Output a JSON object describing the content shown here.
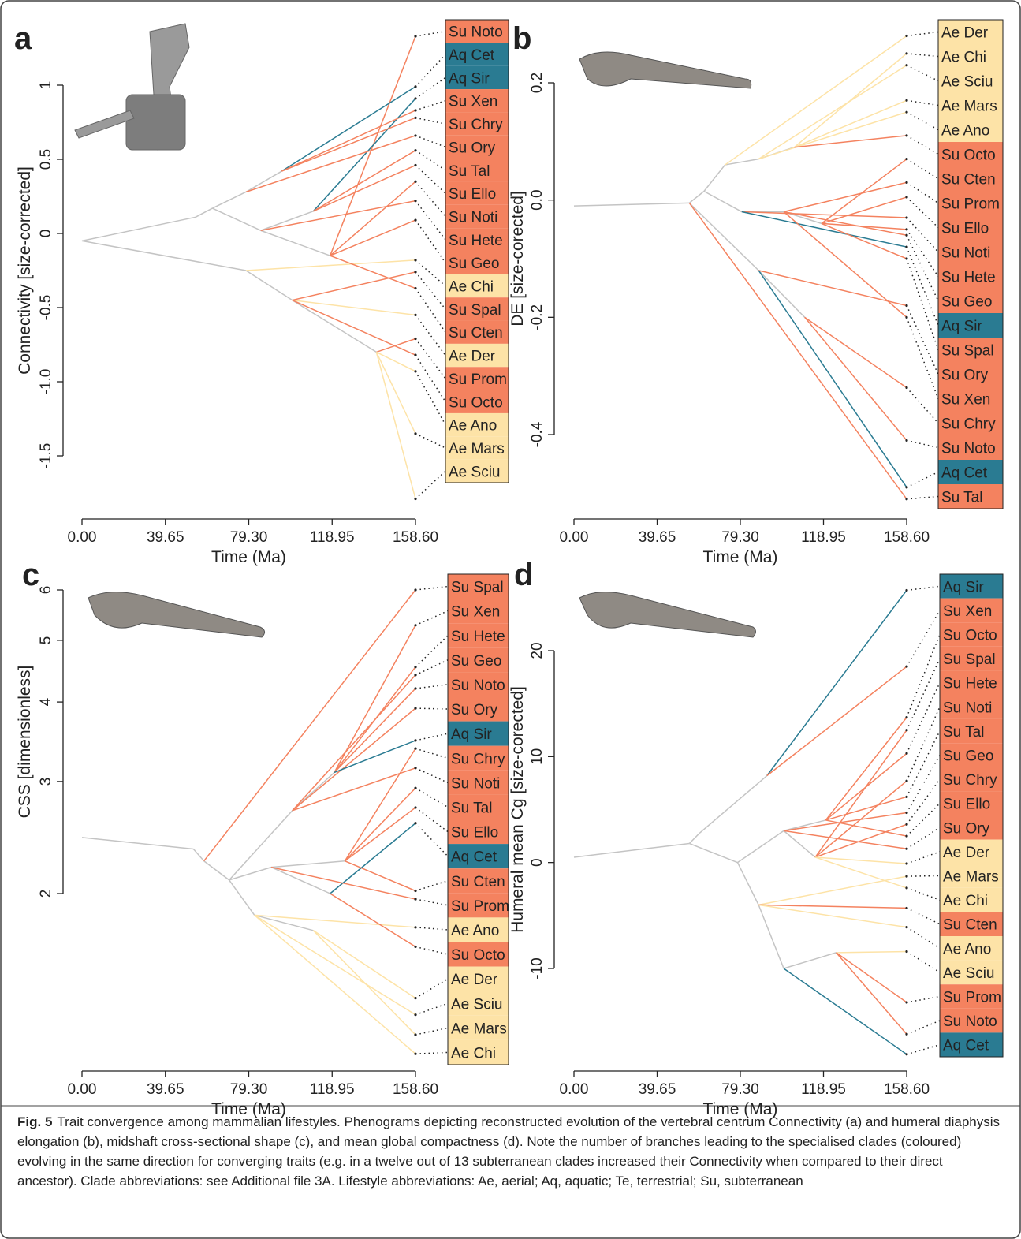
{
  "chart_data": [
    {
      "type": "phenogram",
      "label": "a",
      "ylabel": "Connectivity [size-corrected]",
      "xlabel": "Time (Ma)",
      "xlim": [
        0,
        158.6
      ],
      "xticks": [
        {
          "value": 0,
          "label": "0.00"
        },
        {
          "value": 39.65,
          "label": "39.65"
        },
        {
          "value": 79.3,
          "label": "79.30"
        },
        {
          "value": 118.95,
          "label": "118.95"
        },
        {
          "value": 158.6,
          "label": "158.60"
        }
      ],
      "ylim": [
        -1.5,
        1
      ],
      "yticks": [
        1,
        0.5,
        0,
        -0.5,
        {
          "value": -1,
          "label": "-1.0"
        },
        -1.5
      ],
      "log": false,
      "nodes": [
        {
          "t": 0,
          "value": -0.05,
          "parent": null
        },
        {
          "t": 54,
          "value": 0.11,
          "parent": 0
        },
        {
          "t": 62,
          "value": 0.17,
          "parent": 1
        },
        {
          "t": 78,
          "value": 0.28,
          "parent": 2
        },
        {
          "t": 95,
          "value": 0.42,
          "parent": 3
        },
        {
          "t": 85,
          "value": 0.02,
          "parent": 2
        },
        {
          "t": 78,
          "value": -0.25,
          "parent": 0
        },
        {
          "t": 100,
          "value": -0.45,
          "parent": 6
        },
        {
          "t": 118,
          "value": -0.15,
          "parent": 5
        },
        {
          "t": 140,
          "value": -0.8,
          "parent": 7
        },
        {
          "t": 110,
          "value": 0.15,
          "parent": 5
        }
      ],
      "tips": [
        {
          "label": "Su Noto",
          "value": 1.33,
          "parent": 8,
          "color": "#f4825f"
        },
        {
          "label": "Aq Cet",
          "value": 0.99,
          "parent": 4,
          "color": "#2a7b92"
        },
        {
          "label": "Aq Sir",
          "value": 0.91,
          "parent": 10,
          "color": "#2a7b92"
        },
        {
          "label": "Su Xen",
          "value": 0.83,
          "parent": 4,
          "color": "#f4825f"
        },
        {
          "label": "Su Chry",
          "value": 0.78,
          "parent": 4,
          "color": "#f4825f"
        },
        {
          "label": "Su Ory",
          "value": 0.66,
          "parent": 3,
          "color": "#f4825f"
        },
        {
          "label": "Su Tal",
          "value": 0.56,
          "parent": 10,
          "color": "#f4825f"
        },
        {
          "label": "Su Ello",
          "value": 0.46,
          "parent": 10,
          "color": "#f4825f"
        },
        {
          "label": "Su Noti",
          "value": 0.35,
          "parent": 8,
          "color": "#f4825f"
        },
        {
          "label": "Su Hete",
          "value": 0.22,
          "parent": 5,
          "color": "#f4825f"
        },
        {
          "label": "Su Geo",
          "value": 0.09,
          "parent": 8,
          "color": "#f4825f"
        },
        {
          "label": "Ae Chi",
          "value": -0.18,
          "parent": 6,
          "color": "#fde3a7"
        },
        {
          "label": "Su Spal",
          "value": -0.26,
          "parent": 7,
          "color": "#f4825f"
        },
        {
          "label": "Su Cten",
          "value": -0.37,
          "parent": 8,
          "color": "#f4825f"
        },
        {
          "label": "Ae Der",
          "value": -0.55,
          "parent": 7,
          "color": "#fde3a7"
        },
        {
          "label": "Su Prom",
          "value": -0.71,
          "parent": 9,
          "color": "#f4825f"
        },
        {
          "label": "Su Octo",
          "value": -0.82,
          "parent": 7,
          "color": "#f4825f"
        },
        {
          "label": "Ae Ano",
          "value": -0.93,
          "parent": 9,
          "color": "#fde3a7"
        },
        {
          "label": "Ae Mars",
          "value": -1.35,
          "parent": 9,
          "color": "#fde3a7"
        },
        {
          "label": "Ae Sciu",
          "value": -1.79,
          "parent": 9,
          "color": "#fde3a7"
        }
      ]
    },
    {
      "type": "phenogram",
      "label": "b",
      "ylabel": "DE [size-corected]",
      "xlabel": "Time (Ma)",
      "xlim": [
        0,
        158.6
      ],
      "xticks": [
        {
          "value": 0,
          "label": "0.00"
        },
        {
          "value": 39.65,
          "label": "39.65"
        },
        {
          "value": 79.3,
          "label": "79.30"
        },
        {
          "value": 118.95,
          "label": "118.95"
        },
        {
          "value": 158.6,
          "label": "158.60"
        }
      ],
      "ylim": [
        -0.4,
        0.2
      ],
      "yticks": [
        0.2,
        {
          "value": 0,
          "label": "0.0"
        },
        -0.2,
        -0.4
      ],
      "log": false,
      "nodes": [
        {
          "t": 0,
          "value": -0.01,
          "parent": null
        },
        {
          "t": 55,
          "value": -0.005,
          "parent": 0
        },
        {
          "t": 62,
          "value": 0.015,
          "parent": 1
        },
        {
          "t": 72,
          "value": 0.06,
          "parent": 2
        },
        {
          "t": 88,
          "value": 0.07,
          "parent": 3
        },
        {
          "t": 80,
          "value": -0.02,
          "parent": 2
        },
        {
          "t": 88,
          "value": -0.12,
          "parent": 1
        },
        {
          "t": 100,
          "value": -0.02,
          "parent": 5
        },
        {
          "t": 118,
          "value": -0.04,
          "parent": 7
        },
        {
          "t": 105,
          "value": 0.09,
          "parent": 4
        },
        {
          "t": 110,
          "value": -0.2,
          "parent": 6
        }
      ],
      "tips": [
        {
          "label": "Ae Der",
          "value": 0.28,
          "parent": 3,
          "color": "#fde3a7"
        },
        {
          "label": "Ae Chi",
          "value": 0.25,
          "parent": 9,
          "color": "#fde3a7"
        },
        {
          "label": "Ae Sciu",
          "value": 0.23,
          "parent": 4,
          "color": "#fde3a7"
        },
        {
          "label": "Ae Mars",
          "value": 0.17,
          "parent": 9,
          "color": "#fde3a7"
        },
        {
          "label": "Ae Ano",
          "value": 0.15,
          "parent": 4,
          "color": "#fde3a7"
        },
        {
          "label": "Su Octo",
          "value": 0.11,
          "parent": 9,
          "color": "#f4825f"
        },
        {
          "label": "Su Cten",
          "value": 0.07,
          "parent": 8,
          "color": "#f4825f"
        },
        {
          "label": "Su Prom",
          "value": 0.03,
          "parent": 7,
          "color": "#f4825f"
        },
        {
          "label": "Su Ello",
          "value": 0.005,
          "parent": 8,
          "color": "#f4825f"
        },
        {
          "label": "Su Noti",
          "value": -0.03,
          "parent": 5,
          "color": "#f4825f"
        },
        {
          "label": "Su Hete",
          "value": -0.05,
          "parent": 8,
          "color": "#f4825f"
        },
        {
          "label": "Su Geo",
          "value": -0.06,
          "parent": 7,
          "color": "#f4825f"
        },
        {
          "label": "Aq Sir",
          "value": -0.08,
          "parent": 5,
          "color": "#2a7b92"
        },
        {
          "label": "Su Spal",
          "value": -0.1,
          "parent": 8,
          "color": "#f4825f"
        },
        {
          "label": "Su Ory",
          "value": -0.18,
          "parent": 6,
          "color": "#f4825f"
        },
        {
          "label": "Su Xen",
          "value": -0.2,
          "parent": 7,
          "color": "#f4825f"
        },
        {
          "label": "Su Chry",
          "value": -0.32,
          "parent": 10,
          "color": "#f4825f"
        },
        {
          "label": "Su Noto",
          "value": -0.41,
          "parent": 10,
          "color": "#f4825f"
        },
        {
          "label": "Aq Cet",
          "value": -0.49,
          "parent": 6,
          "color": "#2a7b92"
        },
        {
          "label": "Su Tal",
          "value": -0.51,
          "parent": 1,
          "color": "#f4825f"
        }
      ]
    },
    {
      "type": "phenogram",
      "label": "c",
      "ylabel": "CSS [dimensionless]",
      "xlabel": "Time (Ma)",
      "xlim": [
        0,
        158.6
      ],
      "xticks": [
        {
          "value": 0,
          "label": "0.00"
        },
        {
          "value": 39.65,
          "label": "39.65"
        },
        {
          "value": 79.3,
          "label": "79.30"
        },
        {
          "value": 118.95,
          "label": "118.95"
        },
        {
          "value": 158.6,
          "label": "158.60"
        }
      ],
      "ylim": [
        2,
        6
      ],
      "yticks": [
        2,
        3,
        4,
        5,
        6
      ],
      "log": true,
      "nodes": [
        {
          "t": 0,
          "value": 2.45,
          "parent": null
        },
        {
          "t": 53,
          "value": 2.35,
          "parent": 0
        },
        {
          "t": 58,
          "value": 2.25,
          "parent": 1
        },
        {
          "t": 70,
          "value": 2.1,
          "parent": 2
        },
        {
          "t": 82,
          "value": 1.85,
          "parent": 3
        },
        {
          "t": 100,
          "value": 2.7,
          "parent": 3
        },
        {
          "t": 90,
          "value": 2.2,
          "parent": 3
        },
        {
          "t": 110,
          "value": 1.75,
          "parent": 4
        },
        {
          "t": 120,
          "value": 3.1,
          "parent": 5
        },
        {
          "t": 125,
          "value": 2.25,
          "parent": 6
        },
        {
          "t": 118,
          "value": 2.0,
          "parent": 6
        }
      ],
      "tips": [
        {
          "label": "Su Spal",
          "value": 6.0,
          "parent": 2,
          "color": "#f4825f"
        },
        {
          "label": "Su Xen",
          "value": 5.28,
          "parent": 8,
          "color": "#f4825f"
        },
        {
          "label": "Su Hete",
          "value": 4.54,
          "parent": 8,
          "color": "#f4825f"
        },
        {
          "label": "Su Geo",
          "value": 4.41,
          "parent": 5,
          "color": "#f4825f"
        },
        {
          "label": "Su Noto",
          "value": 4.2,
          "parent": 8,
          "color": "#f4825f"
        },
        {
          "label": "Su Ory",
          "value": 3.91,
          "parent": 5,
          "color": "#f4825f"
        },
        {
          "label": "Aq Sir",
          "value": 3.48,
          "parent": 8,
          "color": "#2a7b92"
        },
        {
          "label": "Su Chry",
          "value": 3.38,
          "parent": 9,
          "color": "#f4825f"
        },
        {
          "label": "Su Noti",
          "value": 3.15,
          "parent": 5,
          "color": "#f4825f"
        },
        {
          "label": "Su Tal",
          "value": 2.93,
          "parent": 9,
          "color": "#f4825f"
        },
        {
          "label": "Su Ello",
          "value": 2.73,
          "parent": 9,
          "color": "#f4825f"
        },
        {
          "label": "Aq Cet",
          "value": 2.58,
          "parent": 10,
          "color": "#2a7b92"
        },
        {
          "label": "Su Cten",
          "value": 2.02,
          "parent": 9,
          "color": "#f4825f"
        },
        {
          "label": "Su Prom",
          "value": 1.96,
          "parent": 6,
          "color": "#f4825f"
        },
        {
          "label": "Ae Ano",
          "value": 1.77,
          "parent": 4,
          "color": "#fde3a7"
        },
        {
          "label": "Su Octo",
          "value": 1.65,
          "parent": 10,
          "color": "#f4825f"
        },
        {
          "label": "Ae Der",
          "value": 1.37,
          "parent": 7,
          "color": "#fde3a7"
        },
        {
          "label": "Ae Sciu",
          "value": 1.29,
          "parent": 4,
          "color": "#fde3a7"
        },
        {
          "label": "Ae Mars",
          "value": 1.2,
          "parent": 7,
          "color": "#fde3a7"
        },
        {
          "label": "Ae Chi",
          "value": 1.12,
          "parent": 4,
          "color": "#fde3a7"
        }
      ]
    },
    {
      "type": "phenogram",
      "label": "d",
      "ylabel": "Humeral mean Cg [size-corected]",
      "xlabel": "Time (Ma)",
      "xlim": [
        0,
        158.6
      ],
      "xticks": [
        {
          "value": 0,
          "label": "0.00"
        },
        {
          "value": 39.65,
          "label": "39.65"
        },
        {
          "value": 79.3,
          "label": "79.30"
        },
        {
          "value": 118.95,
          "label": "118.95"
        },
        {
          "value": 158.6,
          "label": "158.60"
        }
      ],
      "ylim": [
        -10,
        20
      ],
      "yticks": [
        20,
        10,
        0,
        -10
      ],
      "log": false,
      "nodes": [
        {
          "t": 0,
          "value": 0.5,
          "parent": null
        },
        {
          "t": 55,
          "value": 1.8,
          "parent": 0
        },
        {
          "t": 60,
          "value": 2.8,
          "parent": 1
        },
        {
          "t": 92,
          "value": 8.2,
          "parent": 2
        },
        {
          "t": 78,
          "value": 0,
          "parent": 1
        },
        {
          "t": 88,
          "value": -4,
          "parent": 4
        },
        {
          "t": 100,
          "value": 3,
          "parent": 4
        },
        {
          "t": 100,
          "value": -10,
          "parent": 5
        },
        {
          "t": 125,
          "value": -8.5,
          "parent": 7
        },
        {
          "t": 115,
          "value": 0.5,
          "parent": 6
        },
        {
          "t": 120,
          "value": 4,
          "parent": 6
        }
      ],
      "tips": [
        {
          "label": "Aq Sir",
          "value": 25.7,
          "parent": 3,
          "color": "#2a7b92"
        },
        {
          "label": "Su Xen",
          "value": 18.5,
          "parent": 3,
          "color": "#f4825f"
        },
        {
          "label": "Su Octo",
          "value": 13.7,
          "parent": 10,
          "color": "#f4825f"
        },
        {
          "label": "Su Spal",
          "value": 12.5,
          "parent": 9,
          "color": "#f4825f"
        },
        {
          "label": "Su Hete",
          "value": 10.3,
          "parent": 10,
          "color": "#f4825f"
        },
        {
          "label": "Su Noti",
          "value": 7.7,
          "parent": 9,
          "color": "#f4825f"
        },
        {
          "label": "Su Tal",
          "value": 6.2,
          "parent": 10,
          "color": "#f4825f"
        },
        {
          "label": "Su Geo",
          "value": 4.7,
          "parent": 6,
          "color": "#f4825f"
        },
        {
          "label": "Su Chry",
          "value": 3.6,
          "parent": 9,
          "color": "#f4825f"
        },
        {
          "label": "Su Ello",
          "value": 2.5,
          "parent": 10,
          "color": "#f4825f"
        },
        {
          "label": "Su Ory",
          "value": 1.3,
          "parent": 6,
          "color": "#f4825f"
        },
        {
          "label": "Ae Der",
          "value": -0.1,
          "parent": 9,
          "color": "#fde3a7"
        },
        {
          "label": "Ae Mars",
          "value": -1.3,
          "parent": 5,
          "color": "#fde3a7"
        },
        {
          "label": "Ae Chi",
          "value": -2.4,
          "parent": 9,
          "color": "#fde3a7"
        },
        {
          "label": "Su Cten",
          "value": -4.3,
          "parent": 5,
          "color": "#f4825f"
        },
        {
          "label": "Ae Ano",
          "value": -6.1,
          "parent": 5,
          "color": "#fde3a7"
        },
        {
          "label": "Ae Sciu",
          "value": -8.4,
          "parent": 8,
          "color": "#fde3a7"
        },
        {
          "label": "Su Prom",
          "value": -13.2,
          "parent": 8,
          "color": "#f4825f"
        },
        {
          "label": "Su Noto",
          "value": -16.2,
          "parent": 8,
          "color": "#f4825f"
        },
        {
          "label": "Aq Cet",
          "value": -18.1,
          "parent": 7,
          "color": "#2a7b92"
        }
      ]
    }
  ],
  "caption": {
    "label": "Fig. 5",
    "text": "Trait convergence among mammalian lifestyles. Phenograms depicting reconstructed evolution of the vertebral centrum Connectivity (a) and humeral diaphysis elongation (b), midshaft cross-sectional shape (c), and mean global compactness (d). Note the number of branches leading to the specialised clades (coloured) evolving in the same direction for converging traits (e.g. in a twelve out of 13 subterranean clades increased their Connectivity when compared to their direct ancestor). Clade abbreviations: see Additional file 3A. Lifestyle abbreviations: Ae, aerial; Aq, aquatic; Te, terrestrial; Su, subterranean"
  }
}
